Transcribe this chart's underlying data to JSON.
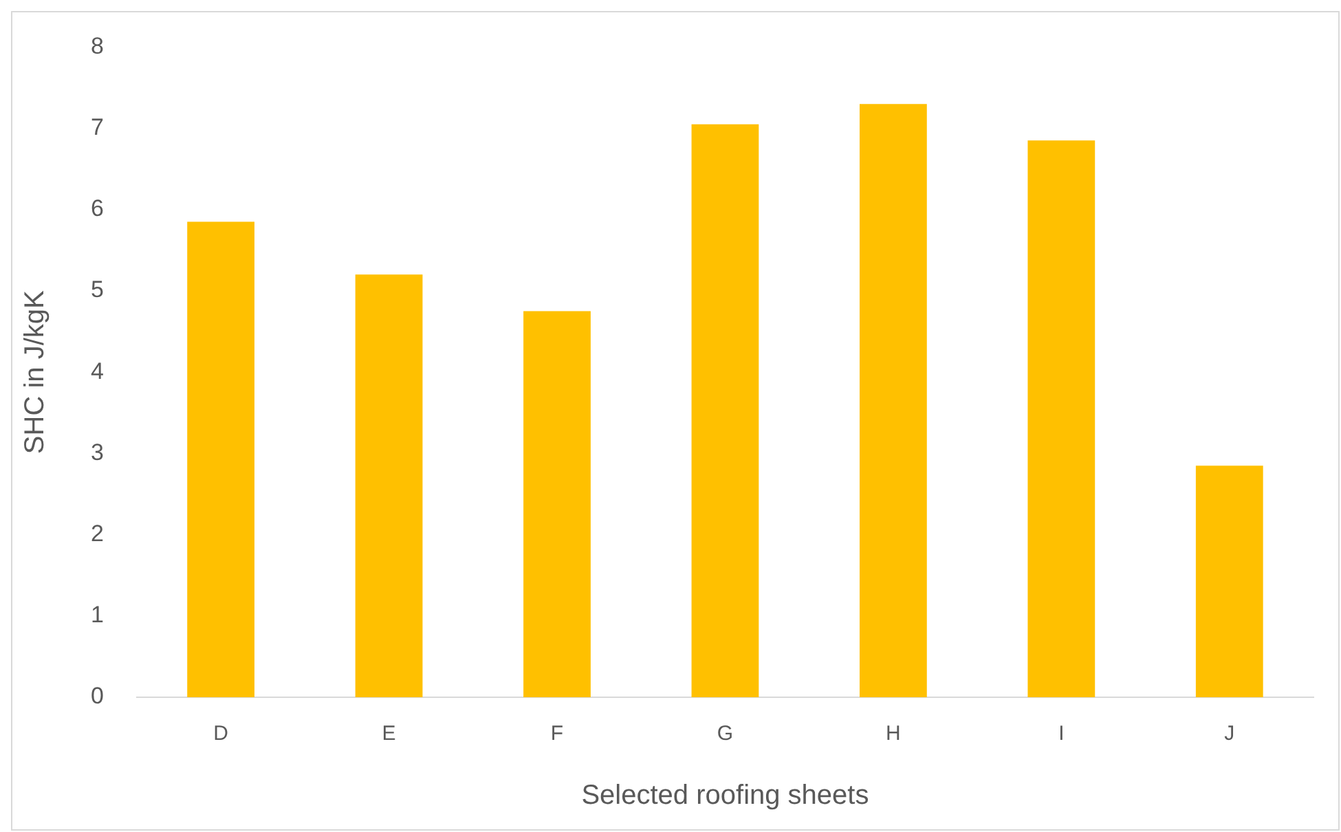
{
  "chart_data": {
    "type": "bar",
    "xlabel": "Selected roofing sheets",
    "ylabel": "SHC in J/kgK",
    "categories": [
      "D",
      "E",
      "F",
      "G",
      "H",
      "I",
      "J"
    ],
    "values": [
      5.85,
      5.2,
      4.75,
      7.05,
      7.3,
      6.85,
      2.85
    ],
    "color": "#ffc000",
    "ylim": [
      0,
      8
    ],
    "yticks": [
      0,
      1,
      2,
      3,
      4,
      5,
      6,
      7,
      8
    ],
    "grid": false,
    "legend": false
  }
}
